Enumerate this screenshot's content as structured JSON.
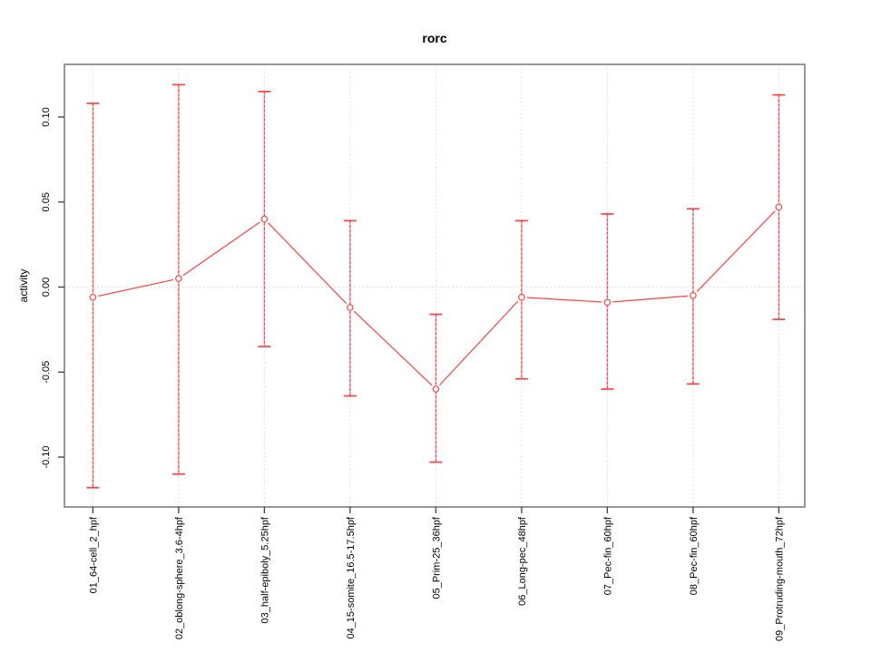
{
  "figure": {
    "title": "rorc"
  },
  "chart_data": {
    "type": "line",
    "title": "rorc",
    "xlabel": "",
    "ylabel": "activity",
    "categories": [
      "01_64-cell_2_hpf",
      "02_oblong-sphere_3.6-4hpf",
      "03_half-epiboly_5.25hpf",
      "04_15-somite_16.5-17.5hpf",
      "05_Prim-25_36hpf",
      "06_Long-pec_48hpf",
      "07_Pec-fin_60hpf",
      "08_Pec-fin_60hpf",
      "09_Protruding-mouth_72hpf"
    ],
    "series": [
      {
        "name": "rorc activity",
        "values": [
          -0.006,
          0.005,
          0.04,
          -0.012,
          -0.06,
          -0.006,
          -0.009,
          -0.005,
          0.047
        ]
      }
    ],
    "error_bars": {
      "upper": [
        0.108,
        0.119,
        0.115,
        0.039,
        -0.016,
        0.039,
        0.043,
        0.046,
        0.113
      ],
      "lower": [
        -0.118,
        -0.11,
        -0.035,
        -0.064,
        -0.103,
        -0.054,
        -0.06,
        -0.057,
        -0.019
      ]
    },
    "yticks": [
      0.1,
      0.05,
      0.0,
      -0.05,
      -0.1
    ],
    "ytick_labels": [
      "0.10",
      "0.05",
      "0.00",
      "-0.05",
      "-0.10"
    ],
    "ylim": [
      -0.13,
      0.132
    ],
    "grid": {
      "vertical_dotted": true,
      "horizontal_zero_line_dotted": true,
      "other_horizontal_lines": false
    },
    "legend": null,
    "point_style": "open-circle",
    "colors": {
      "series": "#f84545",
      "error_bar_light": "#f9a0a0",
      "error_bar_dash": "#f23b3b",
      "grid": "#d8d8d8",
      "box_border": "#7f7f7f",
      "tick": "#3f3f3f",
      "text": "#000000",
      "background": "#ffffff"
    }
  }
}
